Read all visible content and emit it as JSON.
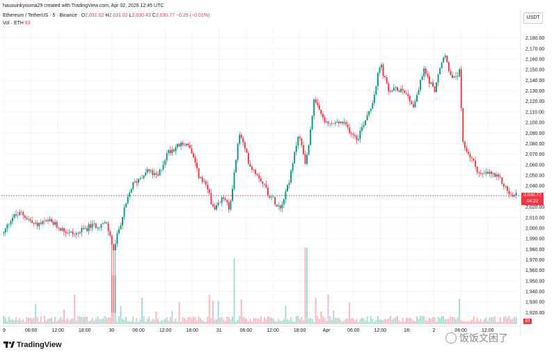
{
  "header": {
    "creator_line": "hauouinkyouma29 created with TradingView.com, Apr 02, 2026 12:45 UTC",
    "symbol": "Ethereum / TetherUS · 5 · Binance",
    "ohlc": {
      "o_label": "O",
      "o": "2,031.02",
      "h_label": "H",
      "h": "2,031.02",
      "l_label": "L",
      "l": "2,030.43",
      "c_label": "C",
      "c": "2,030.77",
      "change": "−0.25 (−0.01%)"
    },
    "vol_label": "Vol · ETH",
    "vol_value": "83"
  },
  "price_axis": {
    "unit": "USDT",
    "ticks": [
      "2,180.00",
      "2,170.00",
      "2,160.00",
      "2,150.00",
      "2,140.00",
      "2,130.00",
      "2,120.00",
      "2,110.00",
      "2,100.00",
      "2,090.00",
      "2,080.00",
      "2,070.00",
      "2,060.00",
      "2,050.00",
      "2,040.00",
      "2,020.00",
      "2,010.00",
      "2,000.00",
      "1,990.00",
      "1,980.00",
      "1,970.00",
      "1,960.00",
      "1,950.00",
      "1,940.00",
      "1,930.00",
      "1,920.00"
    ]
  },
  "current_price": {
    "value": "2,030.77",
    "countdown": "04:22"
  },
  "time_axis": {
    "ticks": [
      "9",
      "06:00",
      "12:00",
      "18:00",
      "30",
      "06:00",
      "12:00",
      "18:00",
      "31",
      "06:00",
      "12:00",
      "18:00",
      "Apr",
      "06:00",
      "12:00",
      "18:",
      "2",
      "06:00",
      "12:00"
    ]
  },
  "brand": {
    "name": "TradingView"
  },
  "watermark": {
    "text": "饭饭文困了"
  },
  "colors": {
    "up": "#089981",
    "down": "#f23645",
    "grid": "#f0f3fa",
    "text": "#131722"
  },
  "chart_data": {
    "type": "candlestick",
    "title": "Ethereum / TetherUS · 5 · Binance",
    "interval": "5",
    "ylim": [
      1915,
      2187
    ],
    "current_price": 2030.77,
    "grid": true,
    "price_path_anchors": [
      [
        0,
        1995
      ],
      [
        0.015,
        2010
      ],
      [
        0.035,
        2014
      ],
      [
        0.06,
        2003
      ],
      [
        0.09,
        2006
      ],
      [
        0.12,
        1997
      ],
      [
        0.14,
        1994
      ],
      [
        0.17,
        2002
      ],
      [
        0.2,
        2004
      ],
      [
        0.21,
        1988
      ],
      [
        0.215,
        1978
      ],
      [
        0.225,
        2000
      ],
      [
        0.25,
        2040
      ],
      [
        0.28,
        2055
      ],
      [
        0.3,
        2048
      ],
      [
        0.32,
        2072
      ],
      [
        0.34,
        2078
      ],
      [
        0.36,
        2080
      ],
      [
        0.38,
        2050
      ],
      [
        0.4,
        2035
      ],
      [
        0.41,
        2015
      ],
      [
        0.43,
        2030
      ],
      [
        0.44,
        2016
      ],
      [
        0.46,
        2090
      ],
      [
        0.48,
        2060
      ],
      [
        0.5,
        2048
      ],
      [
        0.52,
        2030
      ],
      [
        0.54,
        2020
      ],
      [
        0.56,
        2050
      ],
      [
        0.575,
        2090
      ],
      [
        0.59,
        2060
      ],
      [
        0.605,
        2120
      ],
      [
        0.63,
        2098
      ],
      [
        0.66,
        2100
      ],
      [
        0.69,
        2085
      ],
      [
        0.72,
        2120
      ],
      [
        0.735,
        2156
      ],
      [
        0.75,
        2130
      ],
      [
        0.78,
        2132
      ],
      [
        0.8,
        2115
      ],
      [
        0.82,
        2150
      ],
      [
        0.84,
        2130
      ],
      [
        0.86,
        2165
      ],
      [
        0.875,
        2140
      ],
      [
        0.89,
        2148
      ],
      [
        0.895,
        2080
      ],
      [
        0.91,
        2068
      ],
      [
        0.93,
        2050
      ],
      [
        0.95,
        2052
      ],
      [
        0.97,
        2045
      ],
      [
        0.99,
        2030
      ],
      [
        1.0,
        2031
      ]
    ]
  }
}
